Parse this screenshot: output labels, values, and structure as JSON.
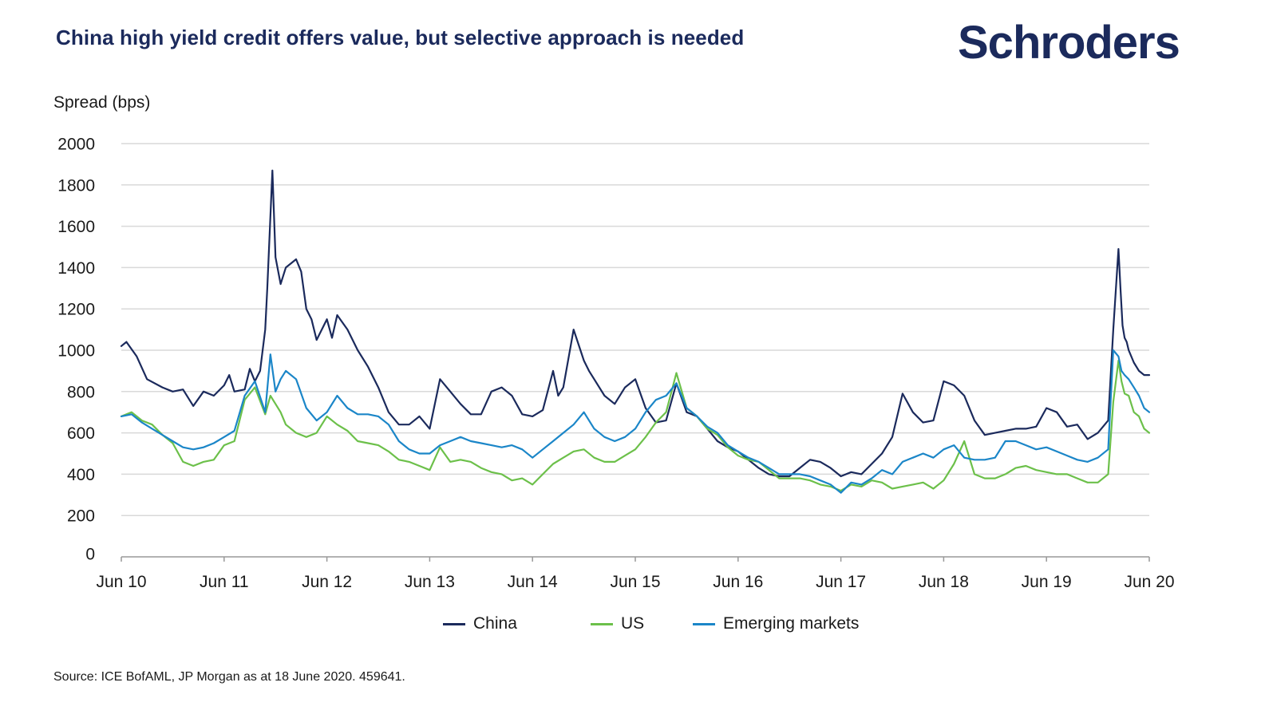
{
  "header": {
    "title": "China high yield credit offers value, but selective approach is needed",
    "logo_text": "Schroders"
  },
  "footer": {
    "source": "Source: ICE BofAML, JP Morgan as at 18 June 2020. 459641."
  },
  "colors": {
    "china": "#1b2a5c",
    "us": "#6cc04a",
    "em": "#1b86c8",
    "grid": "#d9d9d9",
    "axis": "#999999"
  },
  "chart_data": {
    "type": "line",
    "title": "China high yield credit offers value, but selective approach is needed",
    "ylabel": "Spread (bps)",
    "xlabel": "",
    "ylim": [
      0,
      2000
    ],
    "xlim": [
      2010.5,
      2020.5
    ],
    "y_ticks": [
      0,
      200,
      400,
      600,
      800,
      1000,
      1200,
      1400,
      1600,
      1800,
      2000
    ],
    "x_ticks": [
      {
        "label": "Jun 10",
        "value": 2010.5
      },
      {
        "label": "Jun 11",
        "value": 2011.5
      },
      {
        "label": "Jun 12",
        "value": 2012.5
      },
      {
        "label": "Jun 13",
        "value": 2013.5
      },
      {
        "label": "Jun 14",
        "value": 2014.5
      },
      {
        "label": "Jun 15",
        "value": 2015.5
      },
      {
        "label": "Jun 16",
        "value": 2016.5
      },
      {
        "label": "Jun 17",
        "value": 2017.5
      },
      {
        "label": "Jun 18",
        "value": 2018.5
      },
      {
        "label": "Jun 19",
        "value": 2019.5
      },
      {
        "label": "Jun 20",
        "value": 2020.5
      }
    ],
    "grid": true,
    "legend_position": "bottom",
    "series": [
      {
        "name": "China",
        "key": "china",
        "x": [
          2010.5,
          2010.55,
          2010.65,
          2010.75,
          2010.9,
          2011.0,
          2011.1,
          2011.2,
          2011.3,
          2011.4,
          2011.5,
          2011.55,
          2011.6,
          2011.7,
          2011.75,
          2011.8,
          2011.85,
          2011.9,
          2011.92,
          2011.97,
          2012.0,
          2012.05,
          2012.1,
          2012.2,
          2012.25,
          2012.3,
          2012.35,
          2012.4,
          2012.5,
          2012.55,
          2012.6,
          2012.7,
          2012.8,
          2012.9,
          2013.0,
          2013.1,
          2013.2,
          2013.3,
          2013.4,
          2013.5,
          2013.6,
          2013.7,
          2013.8,
          2013.9,
          2014.0,
          2014.1,
          2014.2,
          2014.3,
          2014.4,
          2014.5,
          2014.6,
          2014.7,
          2014.75,
          2014.8,
          2014.9,
          2015.0,
          2015.05,
          2015.1,
          2015.2,
          2015.3,
          2015.4,
          2015.5,
          2015.6,
          2015.7,
          2015.8,
          2015.9,
          2016.0,
          2016.1,
          2016.2,
          2016.3,
          2016.4,
          2016.5,
          2016.6,
          2016.7,
          2016.8,
          2016.9,
          2017.0,
          2017.1,
          2017.2,
          2017.3,
          2017.4,
          2017.5,
          2017.6,
          2017.7,
          2017.8,
          2017.9,
          2018.0,
          2018.1,
          2018.2,
          2018.3,
          2018.4,
          2018.5,
          2018.6,
          2018.7,
          2018.8,
          2018.9,
          2019.0,
          2019.1,
          2019.2,
          2019.3,
          2019.4,
          2019.5,
          2019.6,
          2019.7,
          2019.8,
          2019.9,
          2020.0,
          2020.1,
          2020.15,
          2020.2,
          2020.22,
          2020.24,
          2020.26,
          2020.28,
          2020.3,
          2020.35,
          2020.4,
          2020.45,
          2020.5
        ],
        "values": [
          1020,
          1040,
          970,
          860,
          820,
          800,
          810,
          730,
          800,
          780,
          830,
          880,
          800,
          810,
          910,
          850,
          900,
          1100,
          1300,
          1870,
          1450,
          1320,
          1400,
          1440,
          1380,
          1200,
          1150,
          1050,
          1150,
          1060,
          1170,
          1100,
          1000,
          920,
          820,
          700,
          640,
          640,
          680,
          620,
          860,
          800,
          740,
          690,
          690,
          800,
          820,
          780,
          690,
          680,
          710,
          900,
          780,
          820,
          1100,
          950,
          900,
          860,
          780,
          740,
          820,
          860,
          720,
          650,
          660,
          840,
          700,
          680,
          620,
          560,
          530,
          510,
          470,
          430,
          400,
          390,
          390,
          430,
          470,
          460,
          430,
          390,
          410,
          400,
          450,
          500,
          580,
          790,
          700,
          650,
          660,
          850,
          830,
          780,
          660,
          590,
          600,
          610,
          620,
          620,
          630,
          720,
          700,
          630,
          640,
          570,
          600,
          660,
          1100,
          1490,
          1300,
          1120,
          1060,
          1040,
          1000,
          940,
          900,
          880,
          880
        ]
      },
      {
        "name": "US",
        "key": "us",
        "x": [
          2010.5,
          2010.6,
          2010.7,
          2010.8,
          2010.9,
          2011.0,
          2011.1,
          2011.2,
          2011.3,
          2011.4,
          2011.5,
          2011.6,
          2011.7,
          2011.8,
          2011.9,
          2011.95,
          2012.0,
          2012.05,
          2012.1,
          2012.2,
          2012.3,
          2012.4,
          2012.5,
          2012.6,
          2012.7,
          2012.8,
          2012.9,
          2013.0,
          2013.1,
          2013.2,
          2013.3,
          2013.4,
          2013.5,
          2013.6,
          2013.7,
          2013.8,
          2013.9,
          2014.0,
          2014.1,
          2014.2,
          2014.3,
          2014.4,
          2014.5,
          2014.6,
          2014.7,
          2014.8,
          2014.9,
          2015.0,
          2015.1,
          2015.2,
          2015.3,
          2015.4,
          2015.5,
          2015.6,
          2015.7,
          2015.8,
          2015.9,
          2016.0,
          2016.1,
          2016.2,
          2016.3,
          2016.4,
          2016.5,
          2016.6,
          2016.7,
          2016.8,
          2016.9,
          2017.0,
          2017.1,
          2017.2,
          2017.3,
          2017.4,
          2017.5,
          2017.6,
          2017.7,
          2017.8,
          2017.9,
          2018.0,
          2018.1,
          2018.2,
          2018.3,
          2018.4,
          2018.5,
          2018.6,
          2018.7,
          2018.8,
          2018.9,
          2019.0,
          2019.1,
          2019.2,
          2019.3,
          2019.4,
          2019.5,
          2019.6,
          2019.7,
          2019.8,
          2019.9,
          2020.0,
          2020.1,
          2020.15,
          2020.2,
          2020.23,
          2020.26,
          2020.3,
          2020.35,
          2020.4,
          2020.45,
          2020.5
        ],
        "values": [
          680,
          700,
          660,
          640,
          590,
          550,
          460,
          440,
          460,
          470,
          540,
          560,
          760,
          820,
          690,
          780,
          740,
          700,
          640,
          600,
          580,
          600,
          680,
          640,
          610,
          560,
          550,
          540,
          510,
          470,
          460,
          440,
          420,
          530,
          460,
          470,
          460,
          430,
          410,
          400,
          370,
          380,
          350,
          400,
          450,
          480,
          510,
          520,
          480,
          460,
          460,
          490,
          520,
          580,
          650,
          700,
          890,
          720,
          680,
          620,
          590,
          530,
          490,
          470,
          460,
          420,
          380,
          380,
          380,
          370,
          350,
          340,
          320,
          350,
          340,
          370,
          360,
          330,
          340,
          350,
          360,
          330,
          370,
          450,
          560,
          400,
          380,
          380,
          400,
          430,
          440,
          420,
          410,
          400,
          400,
          380,
          360,
          360,
          400,
          750,
          950,
          850,
          790,
          780,
          700,
          680,
          620,
          600
        ]
      },
      {
        "name": "Emerging markets",
        "key": "em",
        "x": [
          2010.5,
          2010.6,
          2010.7,
          2010.8,
          2010.9,
          2011.0,
          2011.1,
          2011.2,
          2011.3,
          2011.4,
          2011.5,
          2011.6,
          2011.7,
          2011.8,
          2011.9,
          2011.95,
          2012.0,
          2012.05,
          2012.1,
          2012.2,
          2012.3,
          2012.4,
          2012.5,
          2012.6,
          2012.7,
          2012.8,
          2012.9,
          2013.0,
          2013.1,
          2013.2,
          2013.3,
          2013.4,
          2013.5,
          2013.6,
          2013.7,
          2013.8,
          2013.9,
          2014.0,
          2014.1,
          2014.2,
          2014.3,
          2014.4,
          2014.5,
          2014.6,
          2014.7,
          2014.8,
          2014.9,
          2015.0,
          2015.1,
          2015.2,
          2015.3,
          2015.4,
          2015.5,
          2015.6,
          2015.7,
          2015.8,
          2015.9,
          2016.0,
          2016.1,
          2016.2,
          2016.3,
          2016.4,
          2016.5,
          2016.6,
          2016.7,
          2016.8,
          2016.9,
          2017.0,
          2017.1,
          2017.2,
          2017.3,
          2017.4,
          2017.5,
          2017.6,
          2017.7,
          2017.8,
          2017.9,
          2018.0,
          2018.1,
          2018.2,
          2018.3,
          2018.4,
          2018.5,
          2018.6,
          2018.7,
          2018.8,
          2018.9,
          2019.0,
          2019.1,
          2019.2,
          2019.3,
          2019.4,
          2019.5,
          2019.6,
          2019.7,
          2019.8,
          2019.9,
          2020.0,
          2020.1,
          2020.15,
          2020.2,
          2020.23,
          2020.26,
          2020.3,
          2020.35,
          2020.4,
          2020.45,
          2020.5
        ],
        "values": [
          680,
          690,
          650,
          620,
          590,
          560,
          530,
          520,
          530,
          550,
          580,
          610,
          780,
          850,
          700,
          980,
          800,
          860,
          900,
          860,
          720,
          660,
          700,
          780,
          720,
          690,
          690,
          680,
          640,
          560,
          520,
          500,
          500,
          540,
          560,
          580,
          560,
          550,
          540,
          530,
          540,
          520,
          480,
          520,
          560,
          600,
          640,
          700,
          620,
          580,
          560,
          580,
          620,
          700,
          760,
          780,
          840,
          720,
          680,
          630,
          600,
          540,
          510,
          480,
          460,
          430,
          400,
          400,
          400,
          390,
          370,
          350,
          310,
          360,
          350,
          380,
          420,
          400,
          460,
          480,
          500,
          480,
          520,
          540,
          480,
          470,
          470,
          480,
          560,
          560,
          540,
          520,
          530,
          510,
          490,
          470,
          460,
          480,
          520,
          1000,
          970,
          900,
          880,
          860,
          820,
          780,
          720,
          700
        ]
      }
    ]
  }
}
